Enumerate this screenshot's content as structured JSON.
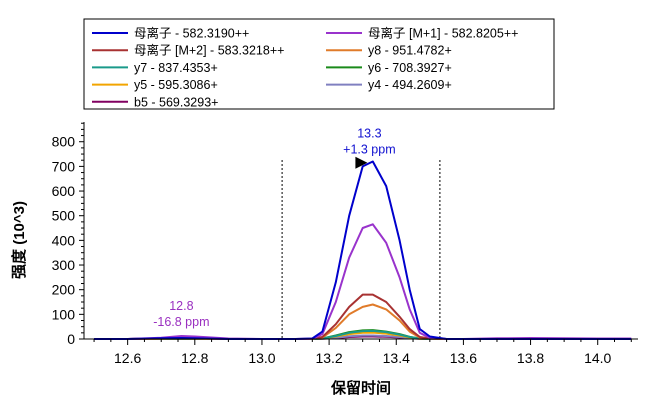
{
  "chart_data": {
    "type": "line",
    "xlabel": "保留时间",
    "ylabel": "强度 (10^3)",
    "xlim": [
      12.47,
      14.12
    ],
    "ylim": [
      0,
      880
    ],
    "x_ticks": [
      "12.6",
      "12.8",
      "13.0",
      "13.2",
      "13.4",
      "13.6",
      "13.8",
      "14.0"
    ],
    "y_ticks": [
      "0",
      "100",
      "200",
      "300",
      "400",
      "500",
      "600",
      "700",
      "800"
    ],
    "grid": false,
    "legend_position": "top",
    "boundaries": [
      13.06,
      13.53
    ],
    "annotations": [
      {
        "x": 13.32,
        "y": 715,
        "line1": "13.3",
        "line2": "+1.3 ppm",
        "color": "#1010d0"
      },
      {
        "x": 12.76,
        "y": 16,
        "line1": "12.8",
        "line2": "-16.8 ppm",
        "color": "#9a30c0"
      }
    ],
    "x": [
      12.5,
      12.6,
      12.7,
      12.76,
      12.8,
      12.9,
      13.0,
      13.1,
      13.15,
      13.18,
      13.22,
      13.26,
      13.3,
      13.33,
      13.37,
      13.41,
      13.44,
      13.47,
      13.5,
      13.55,
      13.6,
      13.7,
      13.8,
      13.9,
      14.0,
      14.1
    ],
    "series": [
      {
        "name": "母离子 - 582.3190++",
        "color": "#0000cc",
        "values": [
          0,
          0,
          3,
          4,
          3,
          0,
          0,
          0,
          2,
          30,
          230,
          500,
          700,
          720,
          620,
          400,
          200,
          40,
          10,
          0,
          0,
          0,
          0,
          0,
          0,
          0
        ]
      },
      {
        "name": "母离子 [M+1] - 582.8205++",
        "color": "#9933cc",
        "values": [
          0,
          0,
          5,
          12,
          10,
          2,
          0,
          0,
          1,
          20,
          150,
          330,
          450,
          465,
          390,
          250,
          120,
          25,
          5,
          0,
          0,
          3,
          4,
          3,
          2,
          2
        ]
      },
      {
        "name": "母离子 [M+2] - 583.3218++",
        "color": "#a83232",
        "values": [
          0,
          0,
          2,
          4,
          3,
          0,
          0,
          0,
          1,
          8,
          60,
          130,
          180,
          180,
          150,
          90,
          40,
          8,
          2,
          0,
          0,
          0,
          0,
          0,
          0,
          0
        ]
      },
      {
        "name": "y8 - 951.4782+",
        "color": "#e07b2a",
        "values": [
          0,
          0,
          1,
          2,
          1,
          0,
          0,
          0,
          0,
          6,
          45,
          100,
          130,
          140,
          120,
          75,
          30,
          6,
          1,
          0,
          0,
          0,
          0,
          0,
          0,
          0
        ]
      },
      {
        "name": "y7 - 837.4353+",
        "color": "#1a9a8a",
        "values": [
          0,
          0,
          1,
          1,
          1,
          0,
          0,
          0,
          0,
          2,
          12,
          25,
          32,
          33,
          28,
          18,
          8,
          2,
          0,
          0,
          0,
          0,
          0,
          0,
          0,
          0
        ]
      },
      {
        "name": "y6 - 708.3927+",
        "color": "#1a8a1a",
        "values": [
          0,
          0,
          1,
          1,
          1,
          0,
          0,
          0,
          0,
          2,
          14,
          28,
          35,
          36,
          30,
          20,
          9,
          2,
          0,
          0,
          0,
          0,
          0,
          0,
          0,
          0
        ]
      },
      {
        "name": "y5 - 595.3086+",
        "color": "#f2a500",
        "values": [
          0,
          0,
          1,
          1,
          1,
          0,
          0,
          0,
          0,
          2,
          10,
          20,
          25,
          26,
          22,
          14,
          6,
          1,
          0,
          0,
          0,
          0,
          0,
          0,
          0,
          0
        ]
      },
      {
        "name": "y4 - 494.2609+",
        "color": "#8080c0",
        "values": [
          0,
          0,
          1,
          1,
          1,
          0,
          0,
          0,
          0,
          1,
          5,
          11,
          14,
          14,
          12,
          8,
          4,
          1,
          0,
          0,
          0,
          0,
          0,
          0,
          0,
          0
        ]
      },
      {
        "name": "b5 - 569.3293+",
        "color": "#800060",
        "values": [
          0,
          0,
          1,
          1,
          1,
          0,
          0,
          0,
          0,
          1,
          4,
          8,
          10,
          10,
          9,
          6,
          3,
          1,
          0,
          0,
          0,
          0,
          0,
          0,
          0,
          0
        ]
      }
    ],
    "legend_order": [
      0,
      1,
      2,
      3,
      4,
      5,
      6,
      7,
      8
    ]
  }
}
